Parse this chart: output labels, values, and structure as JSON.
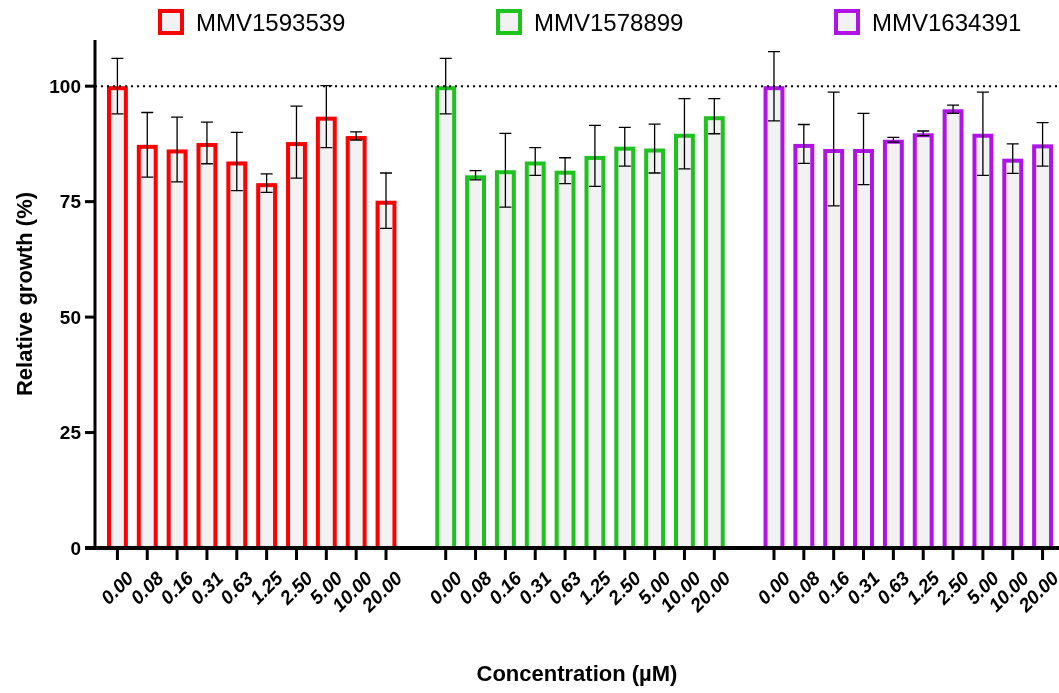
{
  "chart_data": {
    "type": "bar",
    "xlabel": "Concentration (µM)",
    "ylabel": "Relative growth (%)",
    "categories": [
      "0.00",
      "0.08",
      "0.16",
      "0.31",
      "0.63",
      "1.25",
      "2.50",
      "5.00",
      "10.00",
      "20.00",
      null,
      "0.00",
      "0.08",
      "0.16",
      "0.31",
      "0.63",
      "1.25",
      "2.50",
      "5.00",
      "10.00",
      "20.00",
      null,
      "0.00",
      "0.08",
      "0.16",
      "0.31",
      "0.63",
      "1.25",
      "2.50",
      "5.00",
      "10.00",
      "20.00"
    ],
    "series": [
      {
        "name": "MMV1593539",
        "color": "#ff0000",
        "values": [
          100,
          87.3,
          86.3,
          87.7,
          83.7,
          79,
          87.9,
          93.4,
          89.2,
          75.2,
          null,
          null,
          null,
          null,
          null,
          null,
          null,
          null,
          null,
          null,
          null,
          null,
          null,
          null,
          null,
          null,
          null,
          null,
          null,
          null,
          null,
          null
        ],
        "errors": [
          6,
          7,
          7,
          4.5,
          6.3,
          2,
          7.8,
          6.7,
          0.9,
          6,
          null,
          null,
          null,
          null,
          null,
          null,
          null,
          null,
          null,
          null,
          null,
          null,
          null,
          null,
          null,
          null,
          null,
          null,
          null,
          null,
          null,
          null
        ]
      },
      {
        "name": "MMV1578899",
        "color": "#1ec31e",
        "values": [
          null,
          null,
          null,
          null,
          null,
          null,
          null,
          null,
          null,
          null,
          null,
          100,
          80.7,
          81.8,
          83.7,
          81.7,
          84.9,
          86.9,
          86.5,
          89.7,
          93.5,
          null,
          null,
          null,
          null,
          null,
          null,
          null,
          null,
          null,
          null,
          null
        ],
        "errors": [
          null,
          null,
          null,
          null,
          null,
          null,
          null,
          null,
          null,
          null,
          null,
          6,
          1,
          8,
          3,
          2.8,
          6.6,
          4.2,
          5.3,
          7.6,
          3.8,
          null,
          null,
          null,
          null,
          null,
          null,
          null,
          null,
          null,
          null,
          null
        ]
      },
      {
        "name": "MMV1634391",
        "color": "#b012e8",
        "values": [
          null,
          null,
          null,
          null,
          null,
          null,
          null,
          null,
          null,
          null,
          null,
          null,
          null,
          null,
          null,
          null,
          null,
          null,
          null,
          null,
          null,
          null,
          100,
          87.5,
          86.4,
          86.4,
          88.4,
          89.8,
          95,
          89.7,
          84.3,
          87.4
        ],
        "errors": [
          null,
          null,
          null,
          null,
          null,
          null,
          null,
          null,
          null,
          null,
          null,
          null,
          null,
          null,
          null,
          null,
          null,
          null,
          null,
          null,
          null,
          null,
          7.5,
          4.2,
          12.3,
          7.7,
          0.5,
          0.5,
          0.9,
          9,
          3.2,
          4.7
        ]
      }
    ],
    "ylim": [
      0,
      110
    ],
    "yticks": [
      0,
      25,
      50,
      75,
      100
    ],
    "grid": false,
    "legend": "top",
    "ref_lines": [
      {
        "axis": "y",
        "value": 100,
        "color": "#000000",
        "line_style": "dotted"
      }
    ]
  }
}
